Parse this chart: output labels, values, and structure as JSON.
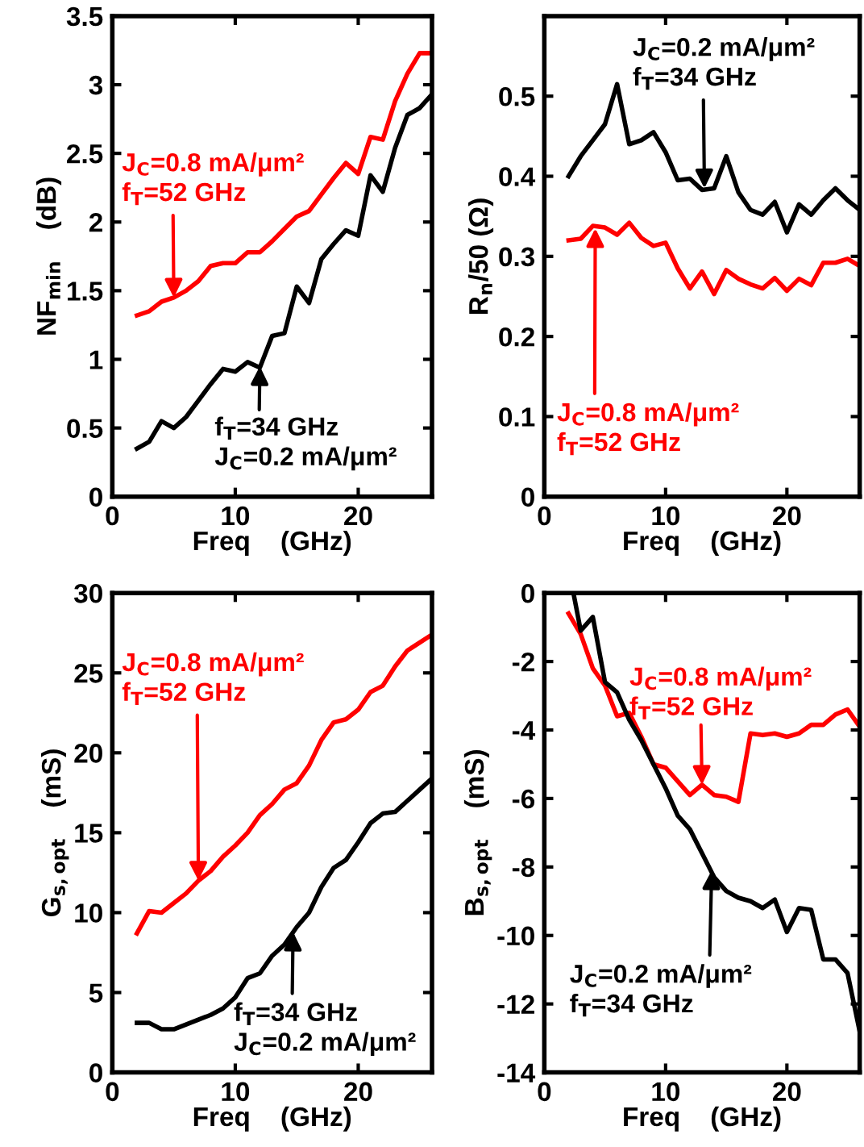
{
  "chart_data": [
    {
      "type": "line",
      "xlabel": "Freq    (GHz)",
      "ylabel": "NF$_{min}$    (dB)",
      "xlim": [
        0,
        26
      ],
      "xticks": [
        0,
        10,
        20
      ],
      "ylim": [
        0,
        3.5
      ],
      "yticks": [
        0,
        0.5,
        1,
        1.5,
        2,
        2.5,
        3,
        3.5
      ],
      "grid": false,
      "line_style": "solid",
      "x": [
        2,
        3,
        4,
        5,
        6,
        7,
        8,
        9,
        10,
        11,
        12,
        13,
        14,
        15,
        16,
        17,
        18,
        19,
        20,
        21,
        22,
        23,
        24,
        25,
        26
      ],
      "series": [
        {
          "color": "#ff0000",
          "values": [
            1.32,
            1.35,
            1.42,
            1.45,
            1.5,
            1.57,
            1.68,
            1.7,
            1.7,
            1.78,
            1.78,
            1.86,
            1.95,
            2.04,
            2.08,
            2.2,
            2.32,
            2.43,
            2.35,
            2.62,
            2.6,
            2.88,
            3.08,
            3.23,
            3.23
          ]
        },
        {
          "color": "#000000",
          "values": [
            0.35,
            0.4,
            0.55,
            0.5,
            0.58,
            0.7,
            0.82,
            0.93,
            0.91,
            0.98,
            0.94,
            1.17,
            1.19,
            1.53,
            1.41,
            1.73,
            1.84,
            1.94,
            1.9,
            2.34,
            2.22,
            2.54,
            2.78,
            2.83,
            2.93
          ]
        }
      ],
      "annotations": [
        {
          "text": "J$_{C}$=0.8 mA/μm²\nf$_{T}$=52 GHz",
          "x": 5,
          "y": 1.45
        },
        {
          "text": "f$_{T}$=34 GHz\nJ$_{C}$=0.2 mA/μm²",
          "x": 12,
          "y": 0.95
        }
      ]
    },
    {
      "type": "line",
      "xlabel": "Freq    (GHz)",
      "ylabel": "R$_{n}$/50 (Ω)",
      "xlim": [
        0,
        26
      ],
      "xticks": [
        0,
        10,
        20
      ],
      "ylim": [
        0,
        0.6
      ],
      "yticks": [
        0,
        0.1,
        0.2,
        0.3,
        0.4,
        0.5
      ],
      "grid": false,
      "line_style": "solid",
      "x": [
        2,
        3,
        4,
        5,
        6,
        7,
        8,
        9,
        10,
        11,
        12,
        13,
        14,
        15,
        16,
        17,
        18,
        19,
        20,
        21,
        22,
        23,
        24,
        25,
        26
      ],
      "series": [
        {
          "color": "#ff0000",
          "values": [
            0.32,
            0.322,
            0.338,
            0.336,
            0.327,
            0.342,
            0.323,
            0.313,
            0.317,
            0.285,
            0.26,
            0.281,
            0.253,
            0.283,
            0.272,
            0.265,
            0.26,
            0.273,
            0.257,
            0.272,
            0.264,
            0.292,
            0.292,
            0.297,
            0.288
          ]
        },
        {
          "color": "#000000",
          "values": [
            0.4,
            0.425,
            0.445,
            0.465,
            0.515,
            0.44,
            0.445,
            0.455,
            0.43,
            0.395,
            0.397,
            0.383,
            0.385,
            0.425,
            0.38,
            0.358,
            0.352,
            0.368,
            0.33,
            0.365,
            0.352,
            0.37,
            0.385,
            0.37,
            0.358
          ]
        }
      ],
      "annotations": [
        {
          "text": "J$_{C}$=0.8 mA/μm²\nf$_{T}$=52 GHz",
          "x": 4.2,
          "y": 0.335
        },
        {
          "text": "J$_{C}$=0.2 mA/μm²\nf$_{T}$=34 GHz",
          "x": 13.2,
          "y": 0.385
        }
      ]
    },
    {
      "type": "line",
      "xlabel": "Freq    (GHz)",
      "ylabel": "G$_{s,opt}$    (mS)",
      "xlim": [
        0,
        26
      ],
      "xticks": [
        0,
        10,
        20
      ],
      "ylim": [
        0,
        30
      ],
      "yticks": [
        0,
        5,
        10,
        15,
        20,
        25,
        30
      ],
      "grid": false,
      "line_style": "solid",
      "x": [
        2,
        3,
        4,
        5,
        6,
        7,
        8,
        9,
        10,
        11,
        12,
        13,
        14,
        15,
        16,
        17,
        18,
        19,
        20,
        21,
        22,
        23,
        24,
        25,
        26
      ],
      "series": [
        {
          "color": "#ff0000",
          "values": [
            8.7,
            10.1,
            10,
            10.6,
            11.2,
            12,
            12.6,
            13.5,
            14.2,
            15,
            16.1,
            16.8,
            17.7,
            18.1,
            19.2,
            20.8,
            21.9,
            22.1,
            22.7,
            23.8,
            24.2,
            25.4,
            26.4,
            26.9,
            27.4
          ]
        },
        {
          "color": "#000000",
          "values": [
            3.1,
            3.1,
            2.7,
            2.7,
            3.0,
            3.3,
            3.6,
            4.0,
            4.7,
            5.9,
            6.2,
            7.3,
            8.0,
            9.1,
            10.0,
            11.6,
            12.8,
            13.3,
            14.4,
            15.6,
            16.2,
            16.3,
            17.0,
            17.7,
            18.4
          ]
        }
      ],
      "annotations": [
        {
          "text": "J$_{C}$=0.8 mA/μm²\nf$_{T}$=52 GHz",
          "x": 7,
          "y": 12
        },
        {
          "text": "f$_{T}$=34 GHz\nJ$_{C}$=0.2 mA/μm²",
          "x": 14.7,
          "y": 8.8
        }
      ]
    },
    {
      "type": "line",
      "xlabel": "Freq    (GHz)",
      "ylabel": "B$_{s,opt}$    (mS)",
      "xlim": [
        0,
        26
      ],
      "xticks": [
        0,
        10,
        20
      ],
      "ylim": [
        -14,
        0
      ],
      "yticks": [
        -14,
        -12,
        -10,
        -8,
        -6,
        -4,
        -2,
        0
      ],
      "grid": false,
      "line_style": "solid",
      "series": [
        {
          "color": "#ff0000",
          "x": [
            2,
            3,
            4,
            5,
            6,
            7,
            8,
            9,
            10,
            11,
            12,
            13,
            14,
            15,
            16,
            17,
            18,
            19,
            20,
            21,
            22,
            23,
            24,
            25,
            26
          ],
          "values": [
            -0.6,
            -1.2,
            -2.2,
            -2.7,
            -3.6,
            -3.5,
            -4.2,
            -5.0,
            -5.1,
            -5.5,
            -5.9,
            -5.6,
            -5.9,
            -5.95,
            -6.1,
            -4.1,
            -4.15,
            -4.1,
            -4.2,
            -4.1,
            -3.85,
            -3.85,
            -3.55,
            -3.4,
            -3.9
          ]
        },
        {
          "color": "#000000",
          "x": [
            2.4,
            3,
            4,
            5,
            6,
            7,
            8,
            9,
            10,
            11,
            12,
            13,
            14,
            15,
            16,
            17,
            18,
            19,
            20,
            21,
            22,
            23,
            24,
            25,
            26
          ],
          "values": [
            0,
            -1.1,
            -0.7,
            -2.6,
            -2.9,
            -3.7,
            -4.3,
            -5.0,
            -5.7,
            -6.5,
            -6.9,
            -7.6,
            -8.3,
            -8.7,
            -8.9,
            -9.0,
            -9.2,
            -8.95,
            -9.9,
            -9.2,
            -9.25,
            -10.7,
            -10.7,
            -11.1,
            -12.8
          ]
        }
      ],
      "annotations": [
        {
          "text": "J$_{C}$=0.8 mA/μm²\nf$_{T}$=52 GHz",
          "x": 13,
          "y": -5.6
        },
        {
          "text": "J$_{C}$=0.2 mA/μm²\nf$_{T}$=34 GHz",
          "x": 13.8,
          "y": -8.1
        }
      ]
    }
  ]
}
